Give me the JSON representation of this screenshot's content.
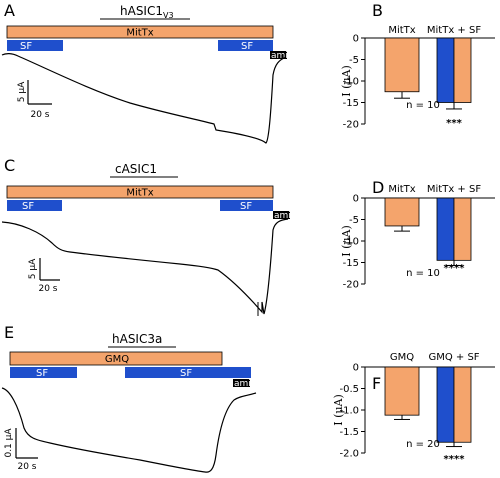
{
  "traces": [
    {
      "label": "A",
      "title": "hASIC1",
      "title_sub": "V3",
      "long_bar": "MitTx",
      "bars": [
        "SF",
        "SF"
      ],
      "ami": "ami",
      "scale_y": "5 μA",
      "scale_x": "20 s"
    },
    {
      "label": "C",
      "title": "cASIC1",
      "title_sub": "",
      "long_bar": "MitTx",
      "bars": [
        "SF",
        "SF"
      ],
      "ami": "ami",
      "scale_y": "5 μA",
      "scale_x": "20 s"
    },
    {
      "label": "E",
      "title": "hASIC3a",
      "title_sub": "",
      "long_bar": "GMQ",
      "bars": [
        "SF",
        "SF"
      ],
      "ami": "ami",
      "scale_y": "0.1 μA",
      "scale_x": "20 s"
    }
  ],
  "colors": {
    "orange": "#f4a46c",
    "blue": "#1f4fcc",
    "black": "#000000"
  },
  "chart_data": [
    {
      "label": "B",
      "type": "bar",
      "categories": [
        "MitTx",
        "MitTx + SF"
      ],
      "values": [
        -12.5,
        -15.0
      ],
      "errors": [
        1.5,
        1.5
      ],
      "ylabel": "I (μA)",
      "ylim": [
        -20,
        0
      ],
      "yticks": [
        0,
        -5,
        -10,
        -15,
        -20
      ],
      "ytick_labels": [
        "0",
        "-5",
        "-10",
        "-15",
        "-20"
      ],
      "n_label": "n = 10",
      "significance": "***"
    },
    {
      "label": "D",
      "type": "bar",
      "categories": [
        "MitTx",
        "MitTx + SF"
      ],
      "values": [
        -6.5,
        -14.5
      ],
      "errors": [
        1.2,
        1.2
      ],
      "ylabel": "I (μA)",
      "ylim": [
        -20,
        0
      ],
      "yticks": [
        0,
        -5,
        -10,
        -15,
        -20
      ],
      "ytick_labels": [
        "0",
        "-5",
        "-10",
        "-15",
        "-20"
      ],
      "n_label": "n = 10",
      "significance": "****"
    },
    {
      "label": "F",
      "type": "bar",
      "categories": [
        "GMQ",
        "GMQ + SF"
      ],
      "values": [
        -1.12,
        -1.75
      ],
      "errors": [
        0.1,
        0.1
      ],
      "ylabel": "I (μA)",
      "ylim": [
        -2.0,
        0
      ],
      "yticks": [
        0,
        -0.5,
        -1.0,
        -1.5,
        -2.0
      ],
      "ytick_labels": [
        "0",
        "-0.5",
        "-1.0",
        "-1.5",
        "-2.0"
      ],
      "n_label": "n = 20",
      "significance": "****"
    }
  ]
}
